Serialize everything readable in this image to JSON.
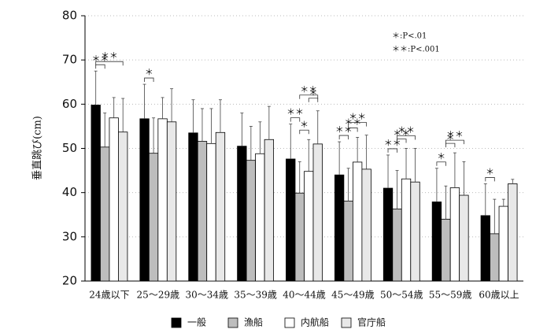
{
  "chart_data": {
    "type": "bar",
    "y_label": "垂直跳び(cm)",
    "categories": [
      "24歳以下",
      "25～29歳",
      "30～34歳",
      "35～39歳",
      "40～44歳",
      "45～49歳",
      "50～54歳",
      "55～59歳",
      "60歳以上"
    ],
    "series": [
      {
        "name": "一般",
        "color": "#000000",
        "values": [
          59.8,
          56.7,
          53.5,
          50.5,
          47.6,
          44.0,
          41.0,
          37.9,
          34.8
        ],
        "errors": [
          7.7,
          7.8,
          7.5,
          7.5,
          7.9,
          7.5,
          7.5,
          7.6,
          7.2
        ]
      },
      {
        "name": "漁船",
        "color": "#bdbdbd",
        "values": [
          50.3,
          48.9,
          51.6,
          47.3,
          39.9,
          38.1,
          36.3,
          34.0,
          30.7
        ],
        "errors": [
          7.7,
          8.0,
          7.4,
          7.7,
          7.1,
          7.4,
          8.7,
          7.5,
          7.8
        ]
      },
      {
        "name": "内航船",
        "color": "#ffffff",
        "values": [
          56.9,
          56.7,
          51.1,
          48.8,
          44.8,
          46.9,
          43.1,
          41.1,
          36.9
        ],
        "errors": [
          4.6,
          4.8,
          7.9,
          7.2,
          7.2,
          5.6,
          6.9,
          7.9,
          1.6
        ]
      },
      {
        "name": "官庁船",
        "color": "#e8e8e8",
        "values": [
          53.7,
          56.0,
          53.6,
          52.0,
          51.0,
          45.3,
          42.4,
          39.4,
          42.0
        ],
        "errors": [
          7.6,
          7.5,
          7.4,
          7.5,
          7.5,
          7.7,
          7.6,
          7.6,
          1.0
        ]
      }
    ],
    "ylim": [
      20,
      80
    ],
    "yticks": [
      20,
      30,
      40,
      50,
      60,
      70,
      80
    ],
    "grid": true,
    "annotations": [
      "＊:P<.01",
      "＊＊:P<.001"
    ],
    "significance": [
      {
        "category": "24歳以下",
        "pair": [
          "一般",
          "漁船"
        ],
        "label": "＊＊"
      },
      {
        "category": "24歳以下",
        "pair": [
          "一般",
          "官庁船"
        ],
        "label": "＊＊"
      },
      {
        "category": "25～29歳",
        "pair": [
          "一般",
          "漁船"
        ],
        "label": "＊"
      },
      {
        "category": "40～44歳",
        "pair": [
          "一般",
          "漁船"
        ],
        "label": "＊＊"
      },
      {
        "category": "40～44歳",
        "pair": [
          "漁船",
          "内航船"
        ],
        "label": "＊"
      },
      {
        "category": "40～44歳",
        "pair": [
          "内航船",
          "官庁船"
        ],
        "label": "＊"
      },
      {
        "category": "40～44歳",
        "pair": [
          "漁船",
          "官庁船"
        ],
        "label": "＊＊"
      },
      {
        "category": "45～49歳",
        "pair": [
          "一般",
          "漁船"
        ],
        "label": "＊＊"
      },
      {
        "category": "45～49歳",
        "pair": [
          "漁船",
          "内航船"
        ],
        "label": "＊＊"
      },
      {
        "category": "45～49歳",
        "pair": [
          "漁船",
          "官庁船"
        ],
        "label": "＊＊"
      },
      {
        "category": "50～54歳",
        "pair": [
          "一般",
          "漁船"
        ],
        "label": "＊＊"
      },
      {
        "category": "50～54歳",
        "pair": [
          "漁船",
          "内航船"
        ],
        "label": "＊＊"
      },
      {
        "category": "50～54歳",
        "pair": [
          "漁船",
          "官庁船"
        ],
        "label": "＊＊"
      },
      {
        "category": "55～59歳",
        "pair": [
          "一般",
          "漁船"
        ],
        "label": "＊"
      },
      {
        "category": "55～59歳",
        "pair": [
          "漁船",
          "内航船"
        ],
        "label": "＊"
      },
      {
        "category": "55～59歳",
        "pair": [
          "漁船",
          "官庁船"
        ],
        "label": "＊＊"
      },
      {
        "category": "60歳以上",
        "pair": [
          "一般",
          "漁船"
        ],
        "label": "＊"
      }
    ]
  }
}
